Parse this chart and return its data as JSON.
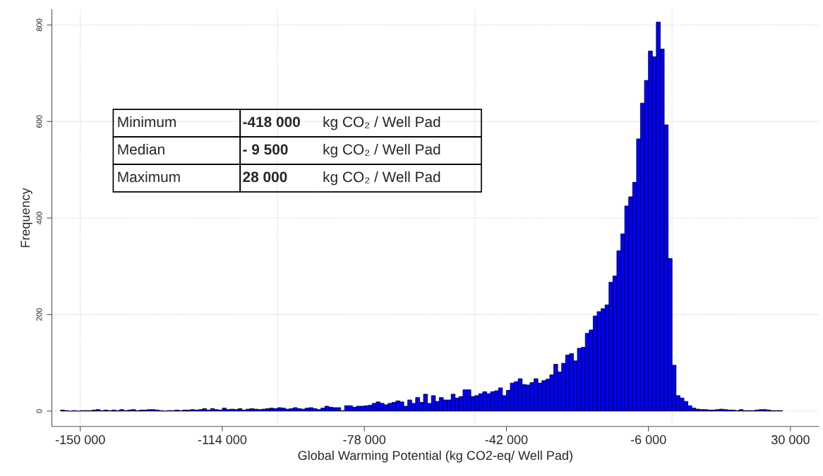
{
  "chart_data": {
    "type": "histogram",
    "xlabel": "Global Warming Potential (kg CO2-eq/ Well Pad)",
    "ylabel": "Frequency",
    "bins": [
      -155000,
      -154000,
      -153000,
      -152000,
      -151000,
      -150000,
      -149000,
      -148000,
      -147000,
      -146000,
      -145000,
      -144000,
      -143000,
      -142000,
      -141000,
      -140000,
      -139000,
      -138000,
      -137000,
      -136000,
      -135000,
      -134000,
      -133000,
      -132000,
      -131000,
      -130000,
      -129000,
      -128000,
      -127000,
      -126000,
      -125000,
      -124000,
      -123000,
      -122000,
      -121000,
      -120000,
      -119000,
      -118000,
      -117000,
      -116000,
      -115000,
      -114000,
      -113000,
      -112000,
      -111000,
      -110000,
      -109000,
      -108000,
      -107000,
      -106000,
      -105000,
      -104000,
      -103000,
      -102000,
      -101000,
      -100000,
      -99000,
      -98000,
      -97000,
      -96000,
      -95000,
      -94000,
      -93000,
      -92000,
      -91000,
      -90000,
      -89000,
      -88000,
      -87000,
      -86000,
      -85000,
      -84000,
      -83000,
      -82000,
      -81000,
      -80000,
      -79000,
      -78000,
      -77000,
      -76000,
      -75000,
      -74000,
      -73000,
      -72000,
      -71000,
      -70000,
      -69000,
      -68000,
      -67000,
      -66000,
      -65000,
      -64000,
      -63000,
      -62000,
      -61000,
      -60000,
      -59000,
      -58000,
      -57000,
      -56000,
      -55000,
      -54000,
      -53000,
      -52000,
      -51000,
      -50000,
      -49000,
      -48000,
      -47000,
      -46000,
      -45000,
      -44000,
      -43000,
      -42000,
      -41000,
      -40000,
      -39000,
      -38000,
      -37000,
      -36000,
      -35000,
      -34000,
      -33000,
      -32000,
      -31000,
      -30000,
      -29000,
      -28000,
      -27000,
      -26000,
      -25000,
      -24000,
      -23000,
      -22000,
      -21000,
      -20000,
      -19000,
      -18000,
      -17000,
      -16000,
      -15000,
      -14000,
      -13000,
      -12000,
      -11000,
      -10000,
      -9000,
      -8000,
      -7000,
      -6000,
      -5000,
      -4000,
      -3000,
      -2000,
      -1000,
      0,
      1000,
      2000,
      3000,
      4000,
      5000,
      6000,
      7000,
      8000,
      9000,
      10000,
      11000,
      12000,
      13000,
      14000,
      15000,
      16000,
      17000,
      18000,
      19000,
      20000,
      21000,
      22000,
      23000,
      24000,
      25000,
      26000,
      27000,
      28000
    ],
    "values": [
      2,
      1,
      0,
      1,
      0,
      1,
      1,
      1,
      2,
      3,
      1,
      2,
      1,
      2,
      1,
      3,
      1,
      2,
      3,
      1,
      2,
      2,
      3,
      3,
      2,
      1,
      0,
      1,
      1,
      2,
      1,
      2,
      2,
      3,
      2,
      3,
      5,
      2,
      5,
      3,
      2,
      6,
      3,
      4,
      3,
      5,
      2,
      4,
      5,
      4,
      3,
      4,
      5,
      6,
      5,
      7,
      6,
      4,
      5,
      7,
      5,
      4,
      6,
      7,
      5,
      3,
      6,
      10,
      8,
      7,
      7,
      1,
      11,
      11,
      8,
      10,
      10,
      11,
      12,
      16,
      19,
      16,
      13,
      16,
      18,
      21,
      19,
      10,
      23,
      16,
      28,
      18,
      35,
      16,
      32,
      20,
      28,
      23,
      23,
      35,
      27,
      30,
      44,
      44,
      30,
      32,
      36,
      40,
      36,
      40,
      42,
      48,
      32,
      43,
      58,
      61,
      67,
      55,
      54,
      59,
      67,
      58,
      63,
      66,
      75,
      97,
      81,
      99,
      116,
      119,
      104,
      130,
      132,
      161,
      168,
      197,
      206,
      212,
      220,
      267,
      280,
      332,
      367,
      425,
      444,
      474,
      564,
      638,
      685,
      746,
      734,
      806,
      750,
      593,
      316,
      95,
      32,
      27,
      20,
      11,
      6,
      4,
      3,
      3,
      2,
      2,
      3,
      4,
      3,
      2,
      2,
      1,
      3,
      1,
      1,
      1,
      2,
      3,
      3,
      2,
      1,
      1,
      1
    ],
    "color": "#0000ff",
    "xlim": [
      -157200,
      37200
    ],
    "ylim": [
      -32,
      832
    ],
    "xticks": [
      {
        "value": -150000,
        "label": "-150 000"
      },
      {
        "value": -114000,
        "label": "-114 000"
      },
      {
        "value": -78000,
        "label": "-78 000"
      },
      {
        "value": -42000,
        "label": "-42 000"
      },
      {
        "value": -6000,
        "label": "-6 000"
      },
      {
        "value": 30000,
        "label": "30 000"
      }
    ],
    "yticks": [
      0,
      200,
      400,
      600,
      800
    ],
    "grid": "y",
    "ref_lines": [
      {
        "axis": "x",
        "value": -150000,
        "color": "#d3d3d3",
        "line_style": "dotted"
      },
      {
        "axis": "x",
        "value": -100000,
        "color": "#d3d3d3",
        "line_style": "dotted"
      },
      {
        "axis": "x",
        "value": -50000,
        "color": "#d3d3d3",
        "line_style": "dotted"
      },
      {
        "axis": "x",
        "value": 0,
        "color": "#d3d3d3",
        "line_style": "dotted"
      }
    ],
    "annotations": [
      "Minimum",
      "-418 000",
      "kg CO₂ / Well Pad",
      "Median",
      "- 9 500",
      "kg CO₂ / Well Pad",
      "Maximum",
      "28 000",
      "kg CO₂ / Well Pad"
    ]
  }
}
